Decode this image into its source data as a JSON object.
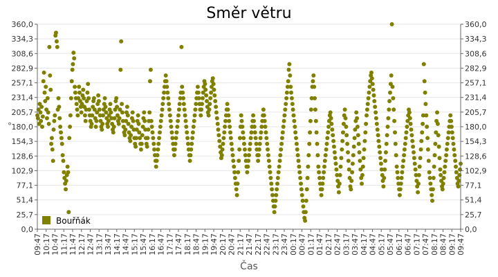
{
  "chart_data": {
    "type": "scatter",
    "title": "Směr větru",
    "xlabel": "Čas",
    "ylabel": "°",
    "ylim": [
      0,
      360
    ],
    "yticks": [
      "0,0",
      "25,7",
      "51,4",
      "77,1",
      "102,9",
      "128,6",
      "154,3",
      "180,0",
      "205,7",
      "231,4",
      "257,1",
      "282,9",
      "308,6",
      "334,3",
      "360,0"
    ],
    "xticks": [
      "09:47",
      "10:17",
      "10:47",
      "11:17",
      "11:47",
      "12:17",
      "12:47",
      "13:17",
      "13:47",
      "14:17",
      "14:47",
      "15:17",
      "15:47",
      "16:17",
      "16:47",
      "17:17",
      "17:47",
      "18:17",
      "18:47",
      "19:17",
      "19:47",
      "20:17",
      "20:47",
      "21:17",
      "21:47",
      "22:17",
      "22:47",
      "23:17",
      "23:47",
      "00:17",
      "00:47",
      "01:17",
      "01:47",
      "02:17",
      "02:47",
      "03:17",
      "03:47",
      "04:17",
      "04:47",
      "05:17",
      "05:47",
      "06:17",
      "06:47",
      "07:17",
      "07:47",
      "08:17",
      "08:47",
      "09:17",
      "09:47"
    ],
    "grid": true,
    "legend_position": "bottom-left",
    "series": [
      {
        "name": "Bouřňák",
        "color": "#808000",
        "x_start": "09:47",
        "x_step_min": 3,
        "values": [
          200,
          195,
          210,
          185,
          220,
          205,
          190,
          215,
          180,
          198,
          260,
          275,
          240,
          225,
          250,
          210,
          195,
          230,
          205,
          185,
          320,
          270,
          245,
          150,
          160,
          140,
          120,
          175,
          190,
          200,
          340,
          345,
          330,
          320,
          210,
          230,
          215,
          195,
          180,
          170,
          160,
          150,
          130,
          120,
          100,
          90,
          80,
          70,
          85,
          95,
          110,
          100,
          30,
          160,
          180,
          200,
          230,
          260,
          280,
          290,
          310,
          300,
          250,
          240,
          230,
          220,
          210,
          200,
          230,
          250,
          240,
          225,
          215,
          205,
          220,
          235,
          245,
          230,
          215,
          200,
          190,
          210,
          225,
          240,
          255,
          230,
          210,
          200,
          190,
          180,
          185,
          200,
          215,
          225,
          230,
          210,
          195,
          180,
          190,
          205,
          220,
          235,
          225,
          210,
          200,
          190,
          180,
          175,
          185,
          200,
          210,
          220,
          230,
          215,
          205,
          195,
          185,
          180,
          190,
          200,
          210,
          220,
          205,
          195,
          185,
          175,
          170,
          180,
          195,
          210,
          225,
          230,
          215,
          200,
          190,
          185,
          195,
          210,
          280,
          330,
          220,
          205,
          190,
          180,
          170,
          165,
          175,
          190,
          205,
          215,
          200,
          185,
          170,
          160,
          155,
          165,
          180,
          195,
          205,
          190,
          175,
          160,
          150,
          145,
          160,
          175,
          190,
          200,
          185,
          170,
          160,
          150,
          140,
          150,
          165,
          180,
          195,
          205,
          190,
          175,
          160,
          150,
          145,
          160,
          175,
          190,
          205,
          260,
          280,
          190,
          180,
          170,
          160,
          150,
          140,
          130,
          120,
          110,
          120,
          130,
          140,
          150,
          160,
          170,
          180,
          190,
          200,
          210,
          220,
          230,
          240,
          250,
          260,
          270,
          260,
          250,
          240,
          230,
          220,
          210,
          200,
          190,
          180,
          170,
          160,
          150,
          140,
          130,
          140,
          150,
          160,
          170,
          180,
          190,
          200,
          210,
          220,
          230,
          240,
          320,
          250,
          240,
          230,
          220,
          210,
          200,
          190,
          180,
          170,
          160,
          150,
          140,
          130,
          120,
          130,
          140,
          150,
          160,
          170,
          180,
          190,
          200,
          210,
          220,
          230,
          240,
          250,
          240,
          230,
          220,
          210,
          200,
          210,
          220,
          230,
          240,
          250,
          260,
          255,
          245,
          235,
          225,
          215,
          205,
          200,
          210,
          220,
          230,
          240,
          250,
          260,
          265,
          255,
          245,
          235,
          225,
          215,
          205,
          195,
          185,
          175,
          165,
          155,
          145,
          135,
          125,
          130,
          140,
          150,
          160,
          170,
          180,
          190,
          200,
          210,
          220,
          210,
          200,
          190,
          180,
          170,
          160,
          150,
          140,
          130,
          120,
          110,
          100,
          90,
          80,
          70,
          60,
          80,
          100,
          120,
          140,
          160,
          180,
          200,
          190,
          180,
          170,
          160,
          150,
          140,
          130,
          120,
          110,
          100,
          110,
          120,
          130,
          140,
          150,
          160,
          170,
          180,
          190,
          200,
          190,
          180,
          170,
          160,
          150,
          140,
          130,
          120,
          130,
          140,
          150,
          160,
          170,
          180,
          190,
          200,
          210,
          200,
          190,
          180,
          170,
          160,
          150,
          140,
          130,
          120,
          110,
          100,
          90,
          80,
          70,
          60,
          50,
          40,
          30,
          40,
          50,
          60,
          70,
          80,
          90,
          100,
          110,
          120,
          130,
          140,
          150,
          160,
          170,
          180,
          190,
          200,
          210,
          220,
          230,
          240,
          250,
          260,
          280,
          290,
          270,
          250,
          240,
          230,
          220,
          210,
          200,
          190,
          180,
          170,
          160,
          150,
          140,
          130,
          120,
          110,
          100,
          90,
          80,
          70,
          60,
          50,
          40,
          30,
          20,
          15,
          30,
          50,
          70,
          90,
          110,
          130,
          150,
          170,
          190,
          210,
          230,
          250,
          260,
          270,
          250,
          230,
          210,
          190,
          170,
          150,
          130,
          110,
          100,
          90,
          80,
          70,
          60,
          70,
          80,
          90,
          100,
          110,
          120,
          130,
          140,
          150,
          160,
          170,
          180,
          190,
          200,
          205,
          195,
          185,
          175,
          165,
          155,
          145,
          135,
          125,
          115,
          105,
          95,
          85,
          75,
          65,
          80,
          95,
          110,
          125,
          140,
          155,
          170,
          185,
          200,
          210,
          195,
          180,
          165,
          150,
          135,
          120,
          105,
          90,
          75,
          70,
          85,
          100,
          115,
          130,
          145,
          160,
          175,
          190,
          205,
          195,
          180,
          165,
          150,
          135,
          120,
          105,
          90,
          80,
          95,
          110,
          125,
          140,
          155,
          170,
          185,
          200,
          210,
          220,
          230,
          240,
          250,
          260,
          270,
          275,
          265,
          255,
          245,
          235,
          225,
          215,
          205,
          195,
          185,
          175,
          165,
          155,
          145,
          135,
          125,
          115,
          105,
          95,
          85,
          75,
          90,
          105,
          120,
          135,
          150,
          165,
          180,
          195,
          210,
          225,
          240,
          255,
          270,
          360,
          250,
          230,
          210,
          190,
          170,
          150,
          130,
          110,
          100,
          90,
          80,
          70,
          60,
          70,
          80,
          90,
          100,
          110,
          120,
          130,
          140,
          150,
          160,
          170,
          180,
          190,
          200,
          210,
          205,
          195,
          185,
          175,
          165,
          155,
          145,
          135,
          125,
          115,
          105,
          95,
          85,
          75,
          65,
          80,
          95,
          110,
          125,
          140,
          155,
          170,
          185,
          200,
          290,
          260,
          240,
          220,
          200,
          180,
          160,
          140,
          120,
          100,
          90,
          80,
          70,
          60,
          50,
          70,
          90,
          110,
          130,
          150,
          170,
          190,
          205,
          185,
          165,
          145,
          125,
          105,
          95,
          85,
          75,
          70,
          80,
          90,
          100,
          110,
          120,
          130,
          140,
          150,
          160,
          170,
          180,
          190,
          200,
          190,
          180,
          170,
          160,
          150,
          140,
          130,
          120,
          110,
          100,
          90,
          80,
          75,
          85,
          95,
          105,
          115
        ]
      }
    ]
  }
}
